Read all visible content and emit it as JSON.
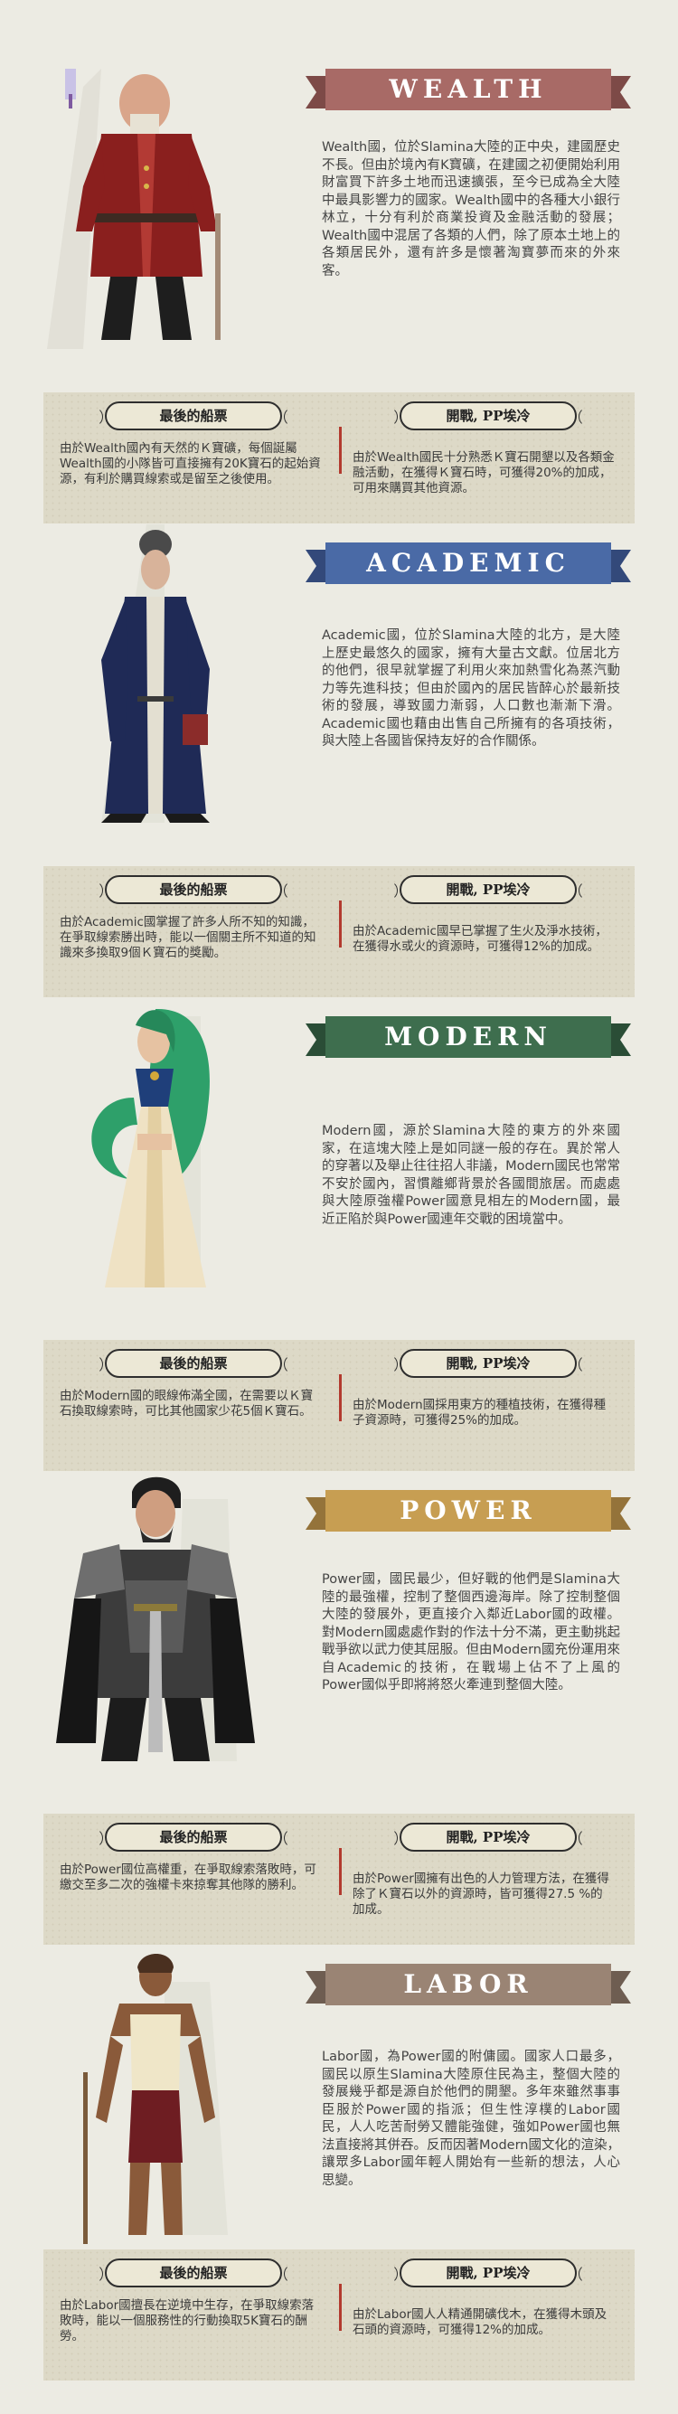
{
  "factions": [
    {
      "id": "wealth",
      "title": "WEALTH",
      "ribbon_color": "#a86a66",
      "ribbon_dark": "#7d4a47",
      "description": "Wealth國，位於Slamina大陸的正中央，建國歷史不長。但由於境內有K寶礦，在建國之初便開始利用財富買下許多土地而迅速擴張，至今已成為全大陸中最具影響力的國家。Wealth國中的各種大小銀行林立，十分有利於商業投資及金融活動的發展；Wealth國中混居了各類的人們，除了原本土地上的各類居民外，還有許多是懷著淘寶夢而來的外來客。",
      "card_left": {
        "heading": "最後的船票",
        "text": "由於Wealth國內有天然的Ｋ寶礦，每個誕屬Wealth國的小隊皆可直接擁有20K寶石的起始資源，有利於購買線索或是留至之後使用。"
      },
      "card_right": {
        "heading": "開戰, PP埃冷",
        "text": "由於Wealth國民十分熟悉Ｋ寶石開墾以及各類金融活動，在獲得Ｋ寶石時，可獲得20%的加成，可用來購買其他資源。"
      }
    },
    {
      "id": "academic",
      "title": "ACADEMIC",
      "ribbon_color": "#4a6aa6",
      "ribbon_dark": "#33497a",
      "description": "Academic國，位於Slamina大陸的北方，是大陸上歷史最悠久的國家，擁有大量古文獻。位居北方的他們，很早就掌握了利用火來加熱雪化為蒸汽動力等先進科技；但由於國內的居民皆醉心於最新技術的發展，導致國力漸弱，人口數也漸漸下滑。Academic國也藉由出售自己所擁有的各項技術，與大陸上各國皆保持友好的合作關係。",
      "card_left": {
        "heading": "最後的船票",
        "text": "由於Academic國掌握了許多人所不知的知識，在爭取線索勝出時，能以一個關主所不知道的知識來多換取9個Ｋ寶石的獎勵。"
      },
      "card_right": {
        "heading": "開戰, PP埃冷",
        "text": "由於Academic國早已掌握了生火及淨水技術，在獲得水或火的資源時，可獲得12%的加成。"
      }
    },
    {
      "id": "modern",
      "title": "MODERN",
      "ribbon_color": "#3e6e4e",
      "ribbon_dark": "#2a4d36",
      "description": "Modern國，源於Slamina大陸的東方的外來國家，在這塊大陸上是如同謎一般的存在。異於常人的穿著以及舉止往往招人非議，Modern國民也常常不安於國內，習慣離鄉背景於各國間旅居。而處處與大陸原強權Power國意見相左的Modern國，最近正陷於與Power國連年交戰的困境當中。",
      "card_left": {
        "heading": "最後的船票",
        "text": "由於Modern國的眼線佈滿全國，在需要以Ｋ寶石換取線索時，可比其他國家少花5個Ｋ寶石。"
      },
      "card_right": {
        "heading": "開戰, PP埃冷",
        "text": "由於Modern國採用東方的種植技術，在獲得種子資源時，可獲得25%的加成。"
      }
    },
    {
      "id": "power",
      "title": "POWER",
      "ribbon_color": "#c79e52",
      "ribbon_dark": "#94733a",
      "description": "Power國，國民最少，但好戰的他們是Slamina大陸的最強權，控制了整個西邊海岸。除了控制整個大陸的發展外，更直接介入鄰近Labor國的政權。對Modern國處處作對的作法十分不滿，更主動挑起戰爭欲以武力使其屈服。但由Modern國充份運用來自Academic的技術，在戰場上佔不了上風的Power國似乎即將將怒火牽連到整個大陸。",
      "card_left": {
        "heading": "最後的船票",
        "text": "由於Power國位高權重，在爭取線索落敗時，可繳交至多二次的強權卡來掠奪其他隊的勝利。"
      },
      "card_right": {
        "heading": "開戰, PP埃冷",
        "text": "由於Power國擁有出色的人力管理方法，在獲得除了Ｋ寶石以外的資源時，皆可獲得27.5 %的加成。"
      }
    },
    {
      "id": "labor",
      "title": "LABOR",
      "ribbon_color": "#9a8474",
      "ribbon_dark": "#6e5d51",
      "description": "Labor國，為Power國的附傭國。國家人口最多，國民以原生Slamina大陸原住民為主，整個大陸的發展幾乎都是源自於他們的開墾。多年來雖然事事臣服於Power國的指派；但生性淳樸的Labor國民，人人吃苦耐勞又體能強健，強如Power國也無法直接將其併吞。反而因著Modern國文化的渲染，讓眾多Labor國年輕人開始有一些新的想法，人心思變。",
      "card_left": {
        "heading": "最後的船票",
        "text": "由於Labor國擅長在逆境中生存，在爭取線索落敗時，能以一個服務性的行動換取5K寶石的酬勞。"
      },
      "card_right": {
        "heading": "開戰, PP埃冷",
        "text": "由於Labor國人人精通開礦伐木，在獲得木頭及石頭的資源時，可獲得12%的加成。"
      }
    }
  ]
}
